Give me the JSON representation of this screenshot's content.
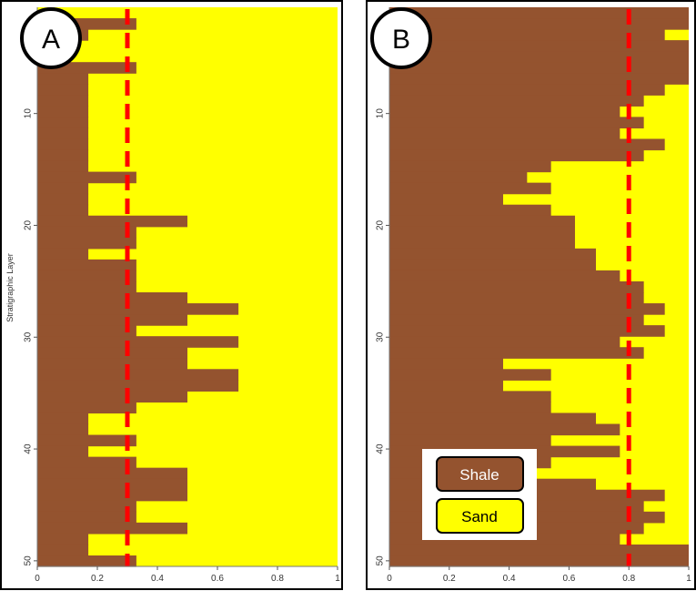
{
  "chart_data": [
    {
      "type": "bar",
      "panel_label": "A",
      "orientation": "horizontal",
      "ylabel": "Stratigraphic Layer",
      "ylim": [
        1,
        50
      ],
      "xlim": [
        0,
        1
      ],
      "y_ticks": [
        "10",
        "20",
        "30",
        "40",
        "50"
      ],
      "x_ticks": [
        "0",
        "0.2",
        "0.4",
        "0.6",
        "0.8",
        "1"
      ],
      "threshold": 0.3,
      "threshold_color": "#ff0000",
      "series": [
        {
          "name": "Shale",
          "color": "#94532f",
          "values": [
            0,
            0.33,
            0.17,
            0,
            0,
            0.33,
            0.17,
            0.17,
            0.17,
            0.17,
            0.17,
            0.17,
            0.17,
            0.17,
            0.17,
            0.33,
            0.17,
            0.17,
            0.17,
            0.5,
            0.33,
            0.33,
            0.17,
            0.33,
            0.33,
            0.33,
            0.5,
            0.67,
            0.5,
            0.33,
            0.67,
            0.5,
            0.5,
            0.67,
            0.67,
            0.5,
            0.33,
            0.17,
            0.17,
            0.33,
            0.17,
            0.33,
            0.5,
            0.5,
            0.5,
            0.33,
            0.33,
            0.5,
            0.17,
            0.17,
            0.33
          ]
        },
        {
          "name": "Sand",
          "color": "#ffff00"
        }
      ]
    },
    {
      "type": "bar",
      "panel_label": "B",
      "orientation": "horizontal",
      "ylim": [
        1,
        50
      ],
      "xlim": [
        0,
        1
      ],
      "y_ticks": [
        "10",
        "20",
        "30",
        "40",
        "50"
      ],
      "x_ticks": [
        "0",
        "0.2",
        "0.4",
        "0.6",
        "0.8",
        "1"
      ],
      "threshold": 0.8,
      "threshold_color": "#ff0000",
      "series": [
        {
          "name": "Shale",
          "color": "#94532f",
          "values": [
            1,
            1,
            0.92,
            1,
            1,
            1,
            1,
            0.92,
            0.85,
            0.77,
            0.85,
            0.77,
            0.92,
            0.85,
            0.54,
            0.46,
            0.54,
            0.38,
            0.54,
            0.62,
            0.62,
            0.62,
            0.69,
            0.69,
            0.77,
            0.85,
            0.85,
            0.92,
            0.85,
            0.92,
            0.77,
            0.85,
            0.38,
            0.54,
            0.38,
            0.54,
            0.54,
            0.69,
            0.77,
            0.54,
            0.77,
            0.54,
            0.46,
            0.69,
            0.92,
            0.85,
            0.92,
            0.85,
            0.77,
            1,
            1
          ]
        },
        {
          "name": "Sand",
          "color": "#ffff00"
        }
      ]
    }
  ],
  "legend": {
    "items": [
      {
        "label": "Shale",
        "color": "#94532f",
        "text_color": "#ffffff"
      },
      {
        "label": "Sand",
        "color": "#ffff00",
        "text_color": "#000000"
      }
    ]
  }
}
